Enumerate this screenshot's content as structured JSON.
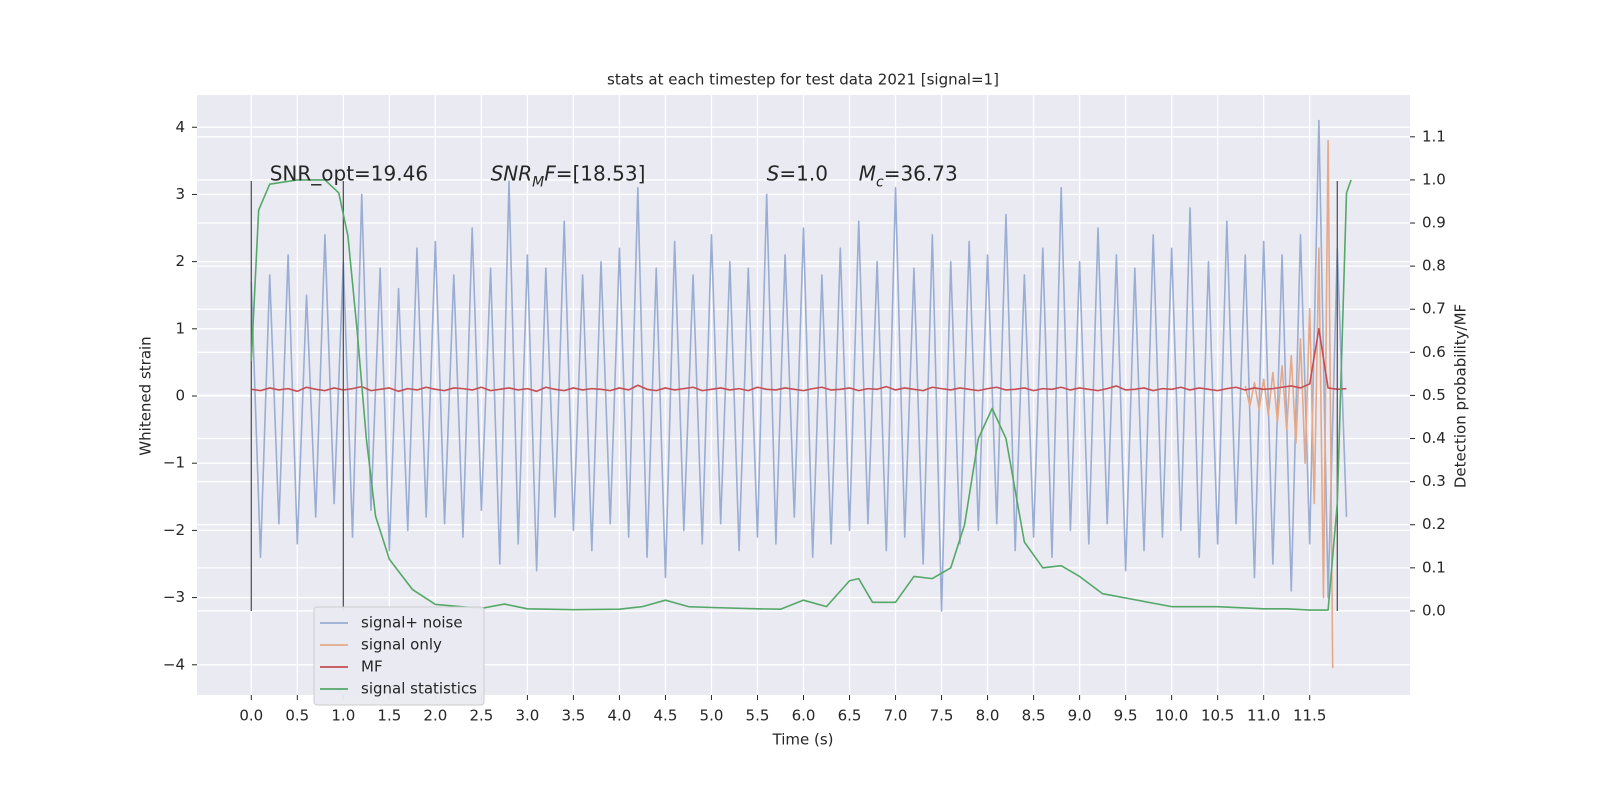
{
  "chart_data": {
    "type": "line",
    "title": "stats at each timestep for test data 2021 [signal=1]",
    "x_label": "Time (s)",
    "y_label": "Whitened strain",
    "y2_label": "Detection probability/MF",
    "xlim": [
      -0.59,
      12.59
    ],
    "ylim": [
      -4.45,
      4.48
    ],
    "y2lim": [
      -0.195,
      1.197
    ],
    "xticks": [
      {
        "value": 0,
        "label": "0.0"
      },
      0.5,
      {
        "value": 1,
        "label": "1.0"
      },
      1.5,
      {
        "value": 2,
        "label": "2.0"
      },
      2.5,
      {
        "value": 3,
        "label": "3.0"
      },
      3.5,
      {
        "value": 4,
        "label": "4.0"
      },
      4.5,
      {
        "value": 5,
        "label": "5.0"
      },
      5.5,
      {
        "value": 6,
        "label": "6.0"
      },
      6.5,
      {
        "value": 7,
        "label": "7.0"
      },
      7.5,
      {
        "value": 8,
        "label": "8.0"
      },
      8.5,
      {
        "value": 9,
        "label": "9.0"
      },
      9.5,
      {
        "value": 10,
        "label": "10.0"
      },
      10.5,
      {
        "value": 11,
        "label": "11.0"
      },
      11.5
    ],
    "yticks": [
      {
        "value": -4,
        "label": "−4"
      },
      {
        "value": -3,
        "label": "−3"
      },
      {
        "value": -2,
        "label": "−2"
      },
      {
        "value": -1,
        "label": "−1"
      },
      0,
      1,
      2,
      3,
      4
    ],
    "y2ticks": [
      {
        "value": 0,
        "label": "0.0"
      },
      0.1,
      0.2,
      0.3,
      0.4,
      0.5,
      0.6,
      0.7,
      0.8,
      0.9,
      {
        "value": 1,
        "label": "1.0"
      },
      1.1
    ],
    "grid": true,
    "legend": "lower left",
    "vlines": [
      0,
      1,
      11.8
    ],
    "vline_range": [
      -3.2,
      3.2
    ],
    "vline_color": "#555555",
    "annotations": [
      {
        "x": 0.2,
        "y": 3.3,
        "parts": [
          {
            "text": "SNR_opt=19.46"
          }
        ]
      },
      {
        "x": 2.6,
        "y": 3.3,
        "parts": [
          {
            "text": "SNR",
            "italic": true
          },
          {
            "text": "M",
            "italic": true,
            "sub": true
          },
          {
            "text": "F",
            "italic": true
          },
          {
            "text": "=[18.53]"
          }
        ]
      },
      {
        "x": 5.6,
        "y": 3.3,
        "parts": [
          {
            "text": "S",
            "italic": true
          },
          {
            "text": "=1.0"
          }
        ]
      },
      {
        "x": 6.6,
        "y": 3.3,
        "parts": [
          {
            "text": "M",
            "italic": true
          },
          {
            "text": "c",
            "italic": true,
            "sub": true
          },
          {
            "text": "=36.73"
          }
        ]
      }
    ],
    "x": [
      0,
      0.1,
      0.2,
      0.3,
      0.4,
      0.5,
      0.6,
      0.7,
      0.8,
      0.9,
      1,
      1.1,
      1.2,
      1.3,
      1.4,
      1.5,
      1.6,
      1.7,
      1.8,
      1.9,
      2,
      2.1,
      2.2,
      2.3,
      2.4,
      2.5,
      2.6,
      2.7,
      2.8,
      2.9,
      3,
      3.1,
      3.2,
      3.3,
      3.4,
      3.5,
      3.6,
      3.7,
      3.8,
      3.9,
      4,
      4.1,
      4.2,
      4.3,
      4.4,
      4.5,
      4.6,
      4.7,
      4.8,
      4.9,
      5,
      5.1,
      5.2,
      5.3,
      5.4,
      5.5,
      5.6,
      5.7,
      5.8,
      5.9,
      6,
      6.1,
      6.2,
      6.3,
      6.4,
      6.5,
      6.6,
      6.7,
      6.8,
      6.9,
      7,
      7.1,
      7.2,
      7.3,
      7.4,
      7.5,
      7.6,
      7.7,
      7.8,
      7.9,
      8,
      8.1,
      8.2,
      8.3,
      8.4,
      8.5,
      8.6,
      8.7,
      8.8,
      8.9,
      9,
      9.1,
      9.2,
      9.3,
      9.4,
      9.5,
      9.6,
      9.7,
      9.8,
      9.9,
      10,
      10.1,
      10.2,
      10.3,
      10.4,
      10.5,
      10.6,
      10.7,
      10.8,
      10.9,
      11,
      11.1,
      11.2,
      11.3,
      11.4,
      11.5,
      11.6,
      11.7,
      11.8,
      11.9
    ],
    "series": [
      {
        "name": "signal+ noise",
        "color": "#9aadd2",
        "values": [
          1.7,
          -2.4,
          1.8,
          -1.9,
          2.1,
          -2.2,
          1.5,
          -1.8,
          2.4,
          -1.6,
          2.0,
          -2.1,
          3.0,
          -1.7,
          1.9,
          -2.3,
          1.6,
          -2.0,
          2.2,
          -1.8,
          2.3,
          -1.9,
          1.8,
          -2.1,
          2.5,
          -1.7,
          1.9,
          -2.5,
          3.2,
          -2.2,
          2.1,
          -2.6,
          1.9,
          -1.8,
          2.6,
          -2.0,
          1.8,
          -2.3,
          2.0,
          -1.9,
          2.2,
          -2.1,
          3.1,
          -2.4,
          1.9,
          -2.7,
          2.3,
          -2.0,
          1.8,
          -2.2,
          2.4,
          -1.9,
          2.0,
          -2.3,
          1.9,
          -2.1,
          3.0,
          -2.2,
          2.1,
          -1.8,
          2.5,
          -2.4,
          1.8,
          -2.2,
          2.2,
          -2.0,
          2.6,
          -1.9,
          2.0,
          -2.3,
          3.1,
          -2.1,
          1.9,
          -2.5,
          2.4,
          -3.2,
          2.0,
          -2.2,
          2.3,
          -2.0,
          2.1,
          -1.9,
          2.7,
          -2.3,
          1.8,
          -2.1,
          2.2,
          -2.4,
          3.1,
          -2.0,
          2.0,
          -2.2,
          2.5,
          -1.9,
          2.1,
          -2.6,
          1.9,
          -2.3,
          2.4,
          -2.1,
          2.2,
          -2.0,
          2.8,
          -2.4,
          2.0,
          -2.2,
          2.6,
          -1.9,
          2.1,
          -2.7,
          2.3,
          -2.5,
          2.1,
          -2.9,
          2.4,
          -2.2,
          4.1,
          -3.0,
          2.2,
          -1.8
        ]
      },
      {
        "name": "signal only",
        "color": "#e4a98a",
        "x": [
          10.8,
          10.85,
          10.9,
          10.95,
          11,
          11.05,
          11.1,
          11.15,
          11.2,
          11.25,
          11.3,
          11.35,
          11.4,
          11.45,
          11.5,
          11.55,
          11.6,
          11.65,
          11.7,
          11.75
        ],
        "values": [
          0.15,
          -0.15,
          0.2,
          -0.2,
          0.25,
          -0.28,
          0.35,
          -0.38,
          0.45,
          -0.5,
          0.6,
          -0.7,
          0.85,
          -1.0,
          1.3,
          -1.6,
          2.2,
          -3.0,
          3.8,
          -4.05
        ]
      },
      {
        "name": "MF",
        "color": "#c44e52",
        "values": [
          0.1,
          0.08,
          0.12,
          0.09,
          0.11,
          0.07,
          0.13,
          0.1,
          0.08,
          0.12,
          0.09,
          0.11,
          0.14,
          0.08,
          0.1,
          0.12,
          0.07,
          0.11,
          0.09,
          0.13,
          0.1,
          0.08,
          0.12,
          0.11,
          0.09,
          0.13,
          0.08,
          0.1,
          0.12,
          0.09,
          0.11,
          0.07,
          0.13,
          0.1,
          0.08,
          0.12,
          0.09,
          0.11,
          0.1,
          0.08,
          0.12,
          0.09,
          0.16,
          0.1,
          0.08,
          0.12,
          0.09,
          0.11,
          0.13,
          0.08,
          0.1,
          0.12,
          0.09,
          0.11,
          0.08,
          0.13,
          0.1,
          0.09,
          0.12,
          0.1,
          0.08,
          0.11,
          0.13,
          0.09,
          0.1,
          0.12,
          0.08,
          0.11,
          0.1,
          0.14,
          0.09,
          0.12,
          0.1,
          0.08,
          0.13,
          0.11,
          0.09,
          0.12,
          0.1,
          0.08,
          0.11,
          0.13,
          0.09,
          0.1,
          0.12,
          0.08,
          0.11,
          0.1,
          0.13,
          0.09,
          0.12,
          0.1,
          0.08,
          0.11,
          0.15,
          0.09,
          0.1,
          0.12,
          0.08,
          0.11,
          0.1,
          0.13,
          0.09,
          0.12,
          0.1,
          0.08,
          0.11,
          0.13,
          0.09,
          0.12,
          0.1,
          0.11,
          0.13,
          0.15,
          0.12,
          0.18,
          1.0,
          0.12,
          0.1,
          0.11
        ]
      },
      {
        "name": "signal statistics",
        "color": "#55a868",
        "axis": "y2",
        "x": [
          0,
          0.08,
          0.2,
          0.5,
          0.8,
          0.95,
          1.05,
          1.15,
          1.25,
          1.35,
          1.5,
          1.75,
          2.0,
          2.5,
          2.75,
          3.0,
          3.5,
          4.0,
          4.25,
          4.5,
          4.75,
          5.0,
          5.5,
          5.75,
          6.0,
          6.25,
          6.5,
          6.6,
          6.75,
          7.0,
          7.2,
          7.4,
          7.6,
          7.75,
          7.9,
          8.05,
          8.2,
          8.4,
          8.6,
          8.8,
          9.0,
          9.25,
          9.5,
          10.0,
          10.5,
          11.0,
          11.25,
          11.5,
          11.7,
          11.8,
          11.9,
          11.95
        ],
        "values": [
          0.58,
          0.93,
          0.99,
          1.0,
          1.0,
          0.97,
          0.87,
          0.65,
          0.4,
          0.22,
          0.12,
          0.05,
          0.015,
          0.006,
          0.016,
          0.005,
          0.003,
          0.004,
          0.01,
          0.025,
          0.01,
          0.008,
          0.005,
          0.004,
          0.025,
          0.01,
          0.07,
          0.075,
          0.02,
          0.02,
          0.08,
          0.075,
          0.1,
          0.2,
          0.4,
          0.47,
          0.4,
          0.16,
          0.1,
          0.105,
          0.08,
          0.04,
          0.03,
          0.01,
          0.01,
          0.005,
          0.005,
          0.002,
          0.002,
          0.25,
          0.97,
          1.0
        ]
      }
    ]
  }
}
